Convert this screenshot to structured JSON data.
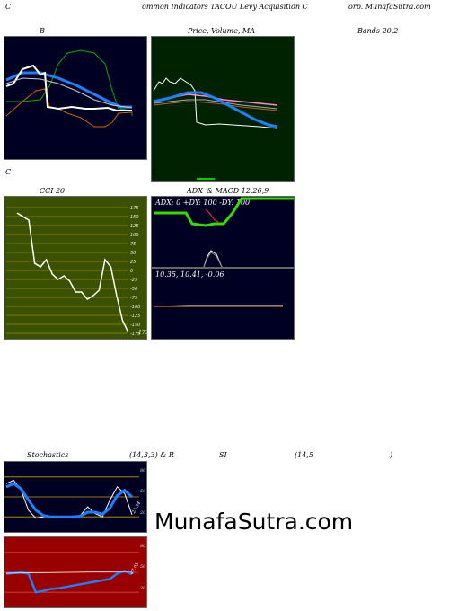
{
  "header": {
    "c_left": "C",
    "title_mid": "ommon  Indicators TACOU Levy Acquisition  C",
    "title_right": "orp. MunafaSutra.com"
  },
  "bollinger": {
    "label_b": "B",
    "label_price": "Price,  Volume,  MA",
    "label_price_overlay": "Volume",
    "label_bands": "Bands 20,2",
    "footer_left": "C",
    "footer_right": "C"
  },
  "cci": {
    "label": "CCI 20",
    "ticks": [
      "175",
      "150",
      "125",
      "100",
      "75",
      "50",
      "25",
      "0",
      "-25",
      "-50",
      "-75",
      "-100",
      "-125",
      "-150",
      "-175"
    ],
    "last_value": "-173"
  },
  "adx": {
    "label_left": "ADX",
    "label_right": "& MACD 12,26,9",
    "values": "ADX: 0   +DY: 100  -DY: 100"
  },
  "macd": {
    "values": "10.35,  10.41,  -0.06"
  },
  "stoch": {
    "label_left": "Stochastics",
    "label_mid": "(14,3,3) & R",
    "label_si": "SI",
    "label_rsi": "(14,5",
    "label_close": ")",
    "ticks": [
      "80",
      "50",
      "20"
    ],
    "last_value": "23.34"
  },
  "rsi": {
    "ticks": [
      "80",
      "50",
      "20"
    ],
    "last_value": "47.05"
  },
  "watermark": "MunafaSutra.com",
  "colors": {
    "navy": "#000022",
    "dark_green": "#002200",
    "olive": "#3a5200",
    "dark_red": "#990000",
    "accent_blue": "#1e7fff"
  },
  "chart_data": [
    {
      "type": "line",
      "title": "B",
      "series": [
        {
          "values": [
            62,
            63,
            66,
            68,
            65,
            64,
            63,
            61,
            59,
            57,
            55,
            53,
            51,
            49,
            47,
            45,
            43,
            41,
            40,
            40
          ]
        },
        {
          "values": [
            70,
            72,
            73,
            72,
            70,
            68,
            66,
            63,
            60,
            57,
            54,
            51,
            48,
            45,
            42,
            40,
            38,
            38,
            38,
            38
          ]
        },
        {
          "values": [
            55,
            52,
            50,
            49,
            50,
            51,
            52,
            51,
            50,
            49,
            48,
            48,
            48,
            47,
            46,
            42,
            41,
            40,
            40,
            40
          ]
        }
      ]
    },
    {
      "type": "line",
      "title": "CCI 20",
      "series": [
        {
          "values": [
            160,
            150,
            140,
            20,
            10,
            30,
            -10,
            -25,
            -15,
            -30,
            -60,
            -60,
            -80,
            -70,
            -55,
            30,
            10,
            -70,
            -140,
            -173
          ]
        }
      ],
      "ylim": [
        -175,
        175
      ]
    },
    {
      "type": "line",
      "title": "Stochastics (14,3,3)",
      "series": [
        {
          "values": [
            70,
            75,
            60,
            30,
            18,
            20,
            21,
            20,
            20,
            19,
            22,
            35,
            25,
            20,
            45,
            65,
            55,
            23
          ]
        },
        {
          "values": [
            65,
            70,
            62,
            45,
            30,
            22,
            20,
            20,
            20,
            20,
            21,
            27,
            27,
            24,
            33,
            52,
            60,
            50
          ]
        }
      ],
      "ylim": [
        0,
        100
      ]
    },
    {
      "type": "line",
      "title": "RSI (14,5)",
      "series": [
        {
          "values": [
            48,
            49,
            50,
            48,
            20,
            22,
            25,
            26,
            28,
            30,
            32,
            34,
            36,
            38,
            40,
            48,
            52,
            47
          ]
        }
      ],
      "ylim": [
        0,
        100
      ]
    }
  ]
}
